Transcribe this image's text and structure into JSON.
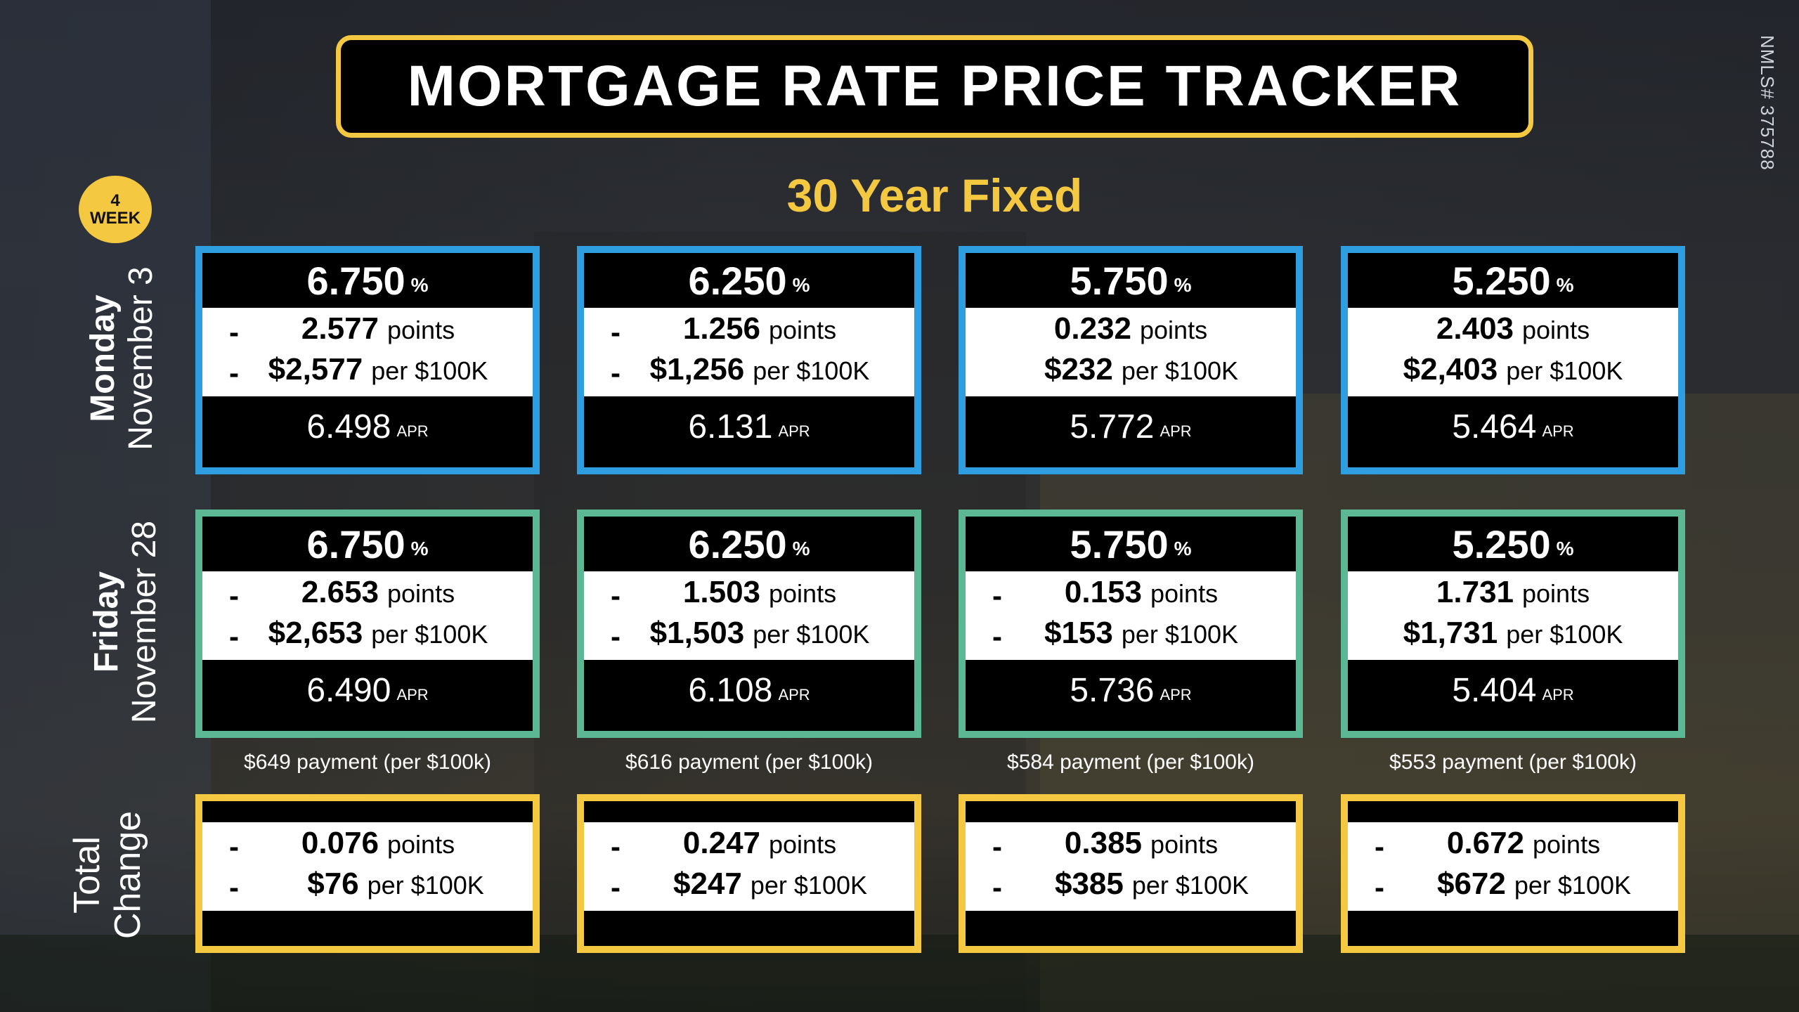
{
  "title": "MORTGAGE RATE PRICE TRACKER",
  "nmls": "NMLS# 375788",
  "badge": {
    "number": "4",
    "label": "WEEK"
  },
  "subtitle": "30 Year Fixed",
  "rows": {
    "monday": {
      "day": "Monday",
      "date": "November 3"
    },
    "friday": {
      "day": "Friday",
      "date": "November 28"
    },
    "total": {
      "line1": "Total",
      "line2": "Change"
    }
  },
  "monday": [
    {
      "rate": "6.750",
      "pct": "%",
      "points_dash": "-",
      "points": "2.577",
      "points_unit": "points",
      "cost_dash": "-",
      "cost": "$2,577",
      "cost_unit": "per $100K",
      "apr": "6.498",
      "apr_label": "APR"
    },
    {
      "rate": "6.250",
      "pct": "%",
      "points_dash": "-",
      "points": "1.256",
      "points_unit": "points",
      "cost_dash": "-",
      "cost": "$1,256",
      "cost_unit": "per $100K",
      "apr": "6.131",
      "apr_label": "APR"
    },
    {
      "rate": "5.750",
      "pct": "%",
      "points_dash": "",
      "points": "0.232",
      "points_unit": "points",
      "cost_dash": "",
      "cost": "$232",
      "cost_unit": "per $100K",
      "apr": "5.772",
      "apr_label": "APR"
    },
    {
      "rate": "5.250",
      "pct": "%",
      "points_dash": "",
      "points": "2.403",
      "points_unit": "points",
      "cost_dash": "",
      "cost": "$2,403",
      "cost_unit": "per $100K",
      "apr": "5.464",
      "apr_label": "APR"
    }
  ],
  "friday": [
    {
      "rate": "6.750",
      "pct": "%",
      "points_dash": "-",
      "points": "2.653",
      "points_unit": "points",
      "cost_dash": "-",
      "cost": "$2,653",
      "cost_unit": "per $100K",
      "apr": "6.490",
      "apr_label": "APR",
      "payment": "$649 payment (per $100k)"
    },
    {
      "rate": "6.250",
      "pct": "%",
      "points_dash": "-",
      "points": "1.503",
      "points_unit": "points",
      "cost_dash": "-",
      "cost": "$1,503",
      "cost_unit": "per $100K",
      "apr": "6.108",
      "apr_label": "APR",
      "payment": "$616 payment (per $100k)"
    },
    {
      "rate": "5.750",
      "pct": "%",
      "points_dash": "-",
      "points": "0.153",
      "points_unit": "points",
      "cost_dash": "-",
      "cost": "$153",
      "cost_unit": "per $100K",
      "apr": "5.736",
      "apr_label": "APR",
      "payment": "$584 payment (per $100k)"
    },
    {
      "rate": "5.250",
      "pct": "%",
      "points_dash": "",
      "points": "1.731",
      "points_unit": "points",
      "cost_dash": "",
      "cost": "$1,731",
      "cost_unit": "per $100K",
      "apr": "5.404",
      "apr_label": "APR",
      "payment": "$553 payment (per $100k)"
    }
  ],
  "total_change": [
    {
      "points_dash": "-",
      "points": "0.076",
      "points_unit": "points",
      "cost_dash": "-",
      "cost": "$76",
      "cost_unit": "per $100K"
    },
    {
      "points_dash": "-",
      "points": "0.247",
      "points_unit": "points",
      "cost_dash": "-",
      "cost": "$247",
      "cost_unit": "per $100K"
    },
    {
      "points_dash": "-",
      "points": "0.385",
      "points_unit": "points",
      "cost_dash": "-",
      "cost": "$385",
      "cost_unit": "per $100K"
    },
    {
      "points_dash": "-",
      "points": "0.672",
      "points_unit": "points",
      "cost_dash": "-",
      "cost": "$672",
      "cost_unit": "per $100K"
    }
  ],
  "colors": {
    "accent": "#f5c842",
    "monday_border": "#2f9ee0",
    "friday_border": "#5cb894",
    "total_border": "#f5c842"
  }
}
